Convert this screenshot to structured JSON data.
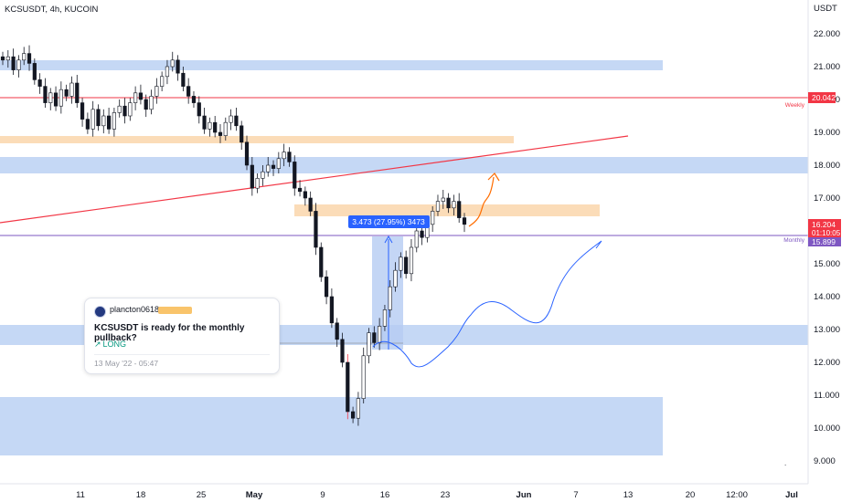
{
  "symbol": "KCSUSDT, 4h, KUCOIN",
  "currency": "USDT",
  "colors": {
    "blue_zone": "#c5d8f5",
    "orange_zone": "#fbdcb8",
    "red_line": "#f23645",
    "monthly_line": "#7e57c2",
    "candle": "#131722",
    "projection_blue": "#2962ff",
    "projection_orange": "#ff6d00",
    "price_badge": "#f23645",
    "monthly_badge": "#7e57c2"
  },
  "price_badges": {
    "current_price": "16.204",
    "countdown": "01:10:05",
    "weekly_price": "20.042",
    "monthly_price": "15.899"
  },
  "level_labels": {
    "weekly": "Weekly",
    "monthly": "Monthly"
  },
  "measure_label": "3.473 (27.95%) 3473",
  "idea_card": {
    "author": "plancton0618",
    "title": "KCSUSDT is ready for the monthly pullback?",
    "direction": "LONG",
    "date": "13 May '22 - 05:47"
  },
  "chart_data": {
    "type": "candlestick",
    "y_ticks": [
      "22.000",
      "21.000",
      "20.000",
      "19.000",
      "18.000",
      "17.000",
      "15.000",
      "14.000",
      "13.000",
      "12.000",
      "11.000",
      "10.000",
      "9.000"
    ],
    "x_ticks": [
      "11",
      "18",
      "25",
      "May",
      "9",
      "16",
      "23",
      "Jun",
      "7",
      "13",
      "20",
      "12:00",
      "Jul"
    ],
    "ylim": [
      8.6,
      22.6
    ],
    "closes": [
      21.2,
      21.3,
      20.9,
      21.2,
      21.4,
      21.1,
      20.6,
      20.4,
      19.9,
      20.2,
      19.8,
      20.3,
      20.1,
      20.5,
      19.9,
      19.4,
      19.1,
      19.7,
      19.2,
      19.5,
      19.1,
      19.6,
      19.8,
      19.5,
      19.9,
      20.2,
      20.0,
      19.7,
      20.1,
      20.4,
      20.7,
      21.0,
      21.2,
      20.8,
      20.4,
      20.1,
      19.9,
      19.5,
      19.1,
      19.3,
      19.0,
      18.9,
      19.3,
      19.5,
      19.2,
      18.7,
      18.0,
      17.3,
      17.6,
      17.8,
      18.0,
      17.9,
      18.2,
      18.4,
      18.1,
      17.3,
      17.2,
      17.0,
      16.6,
      15.5,
      14.6,
      14.0,
      13.2,
      12.7,
      12.0,
      10.5,
      10.3,
      10.9,
      12.2,
      12.9,
      12.6,
      13.1,
      13.6,
      14.3,
      14.8,
      15.2,
      14.7,
      15.5,
      16.0,
      15.8,
      16.2,
      16.6,
      16.9,
      17.0,
      16.7,
      16.9,
      16.4,
      16.2
    ]
  }
}
